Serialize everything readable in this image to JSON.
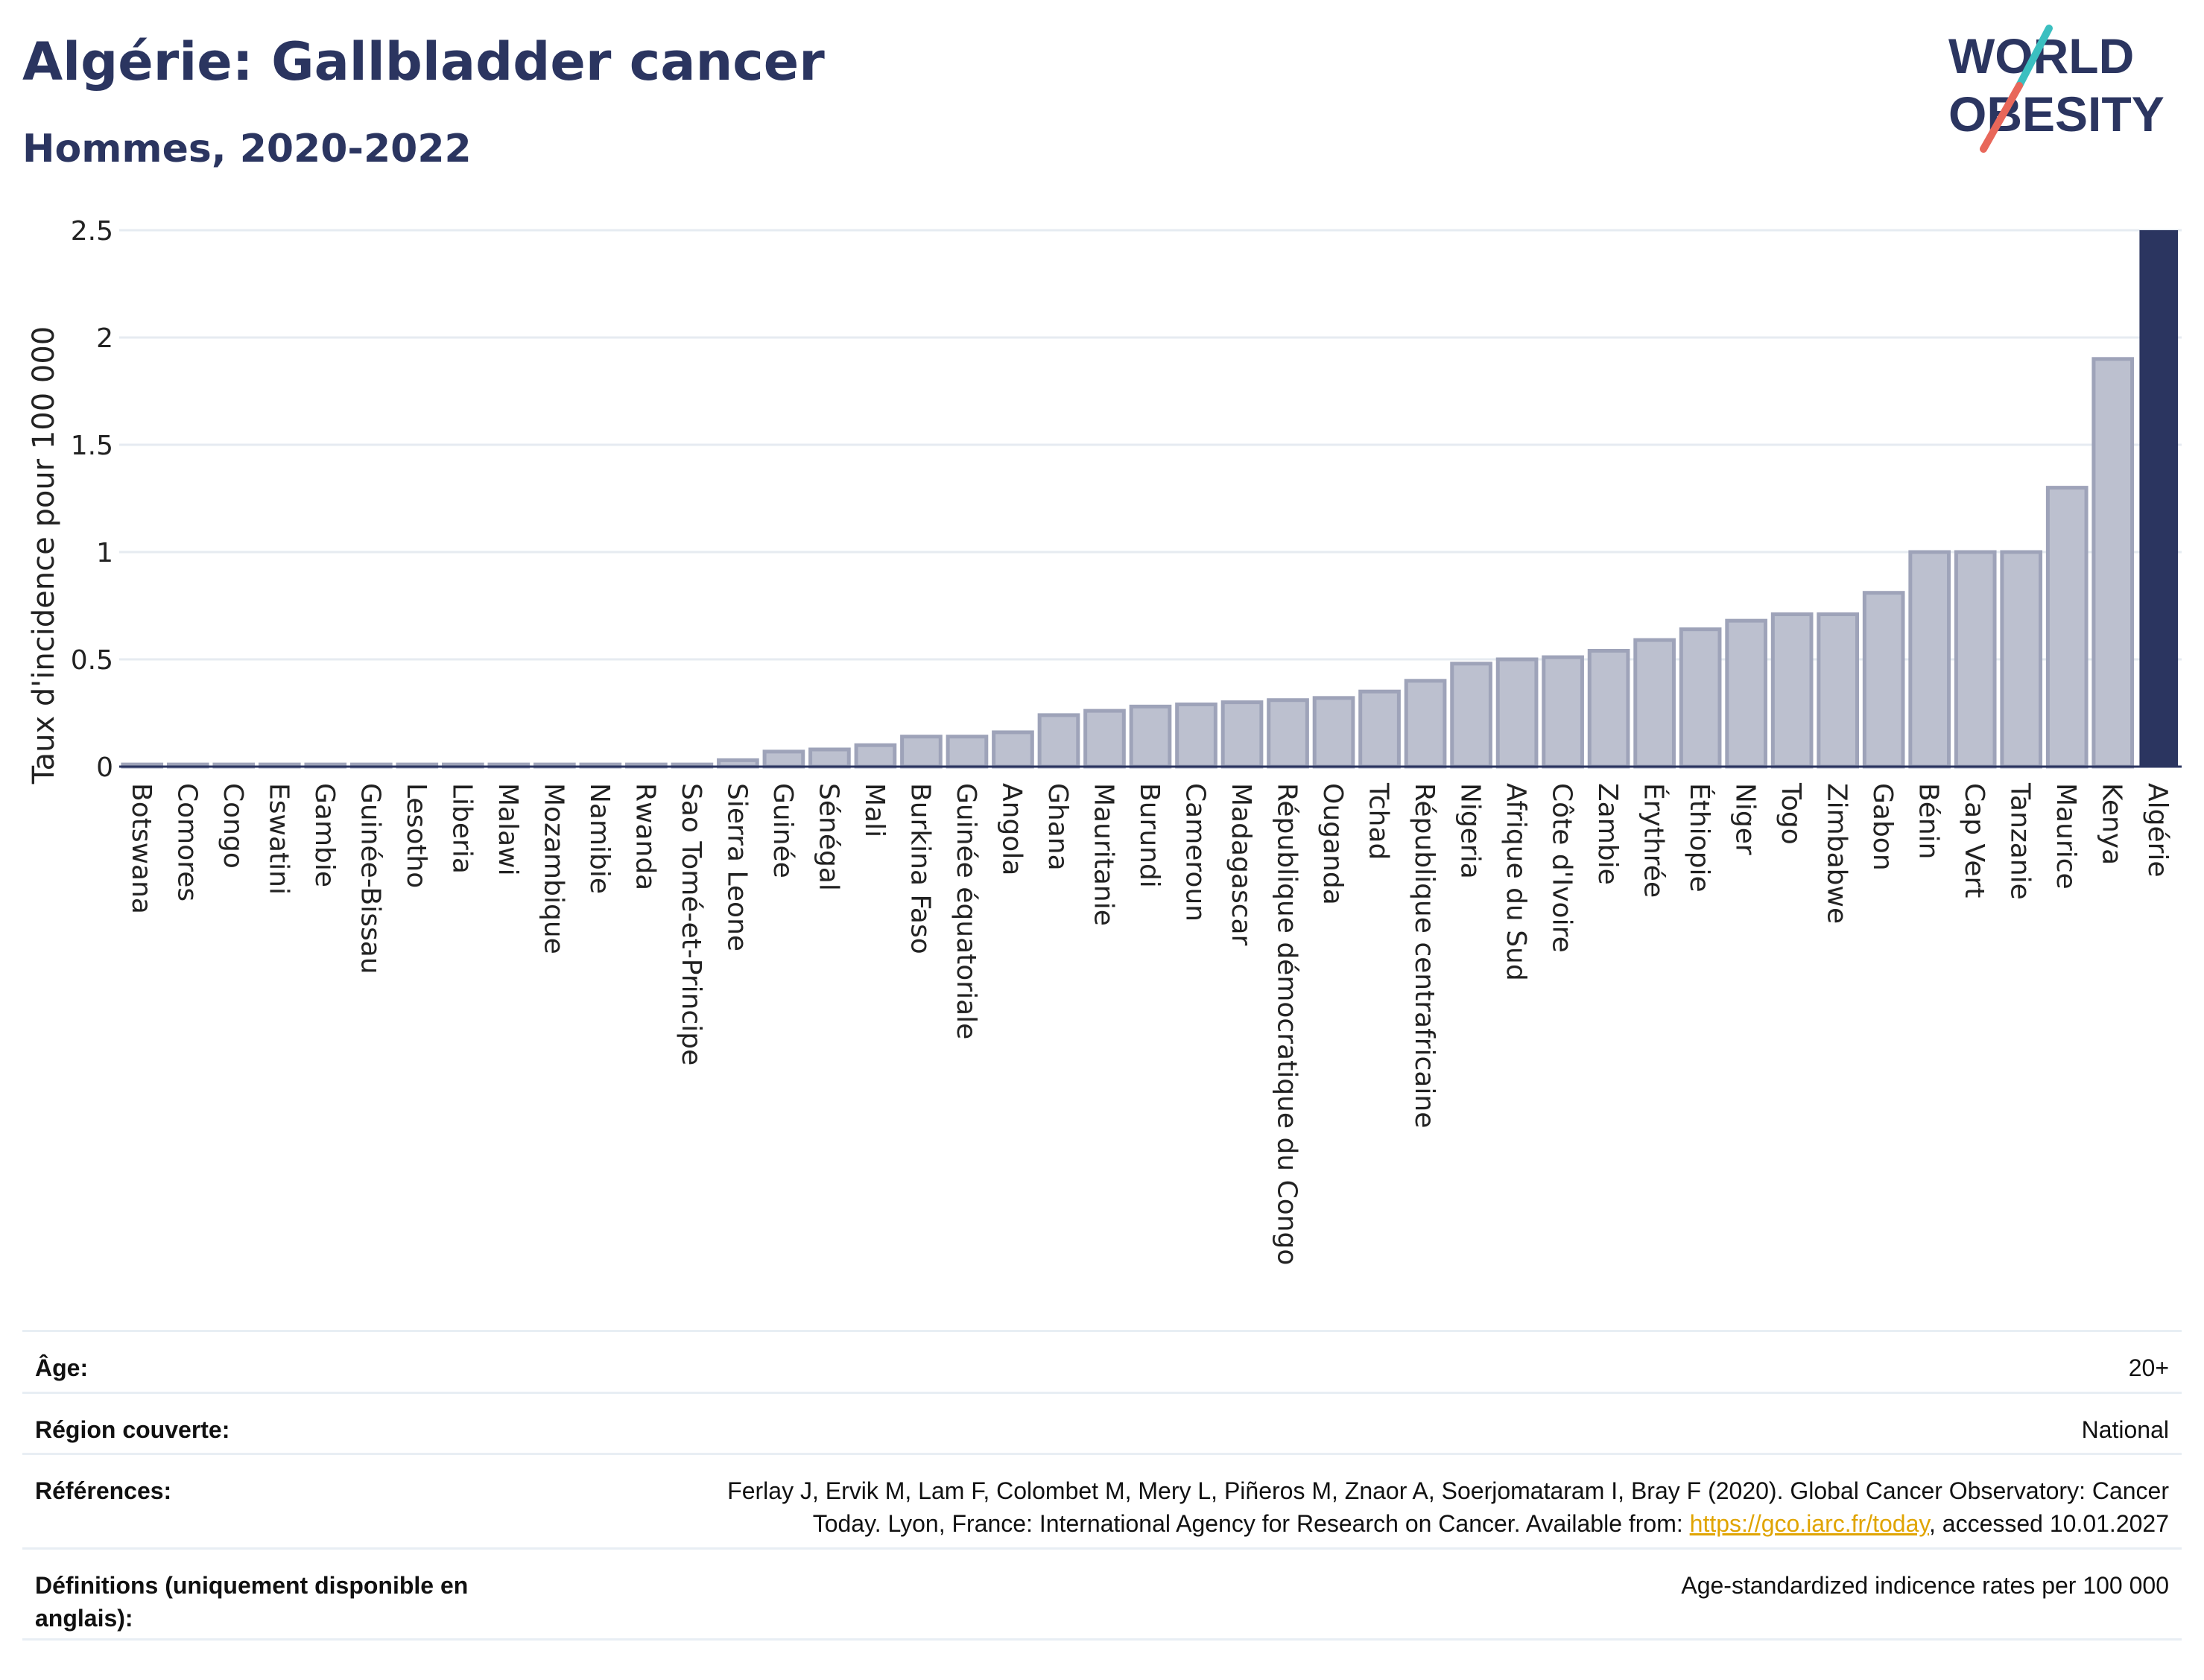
{
  "header": {
    "title": "Algérie: Gallbladder cancer",
    "subtitle": "Hommes, 2020-2022"
  },
  "logo": {
    "line1": "WORLD",
    "line2": "OBESITY",
    "colors": {
      "text": "#2b3560",
      "slash_top": "#3bbfc0",
      "slash_bottom": "#e8675a"
    }
  },
  "colors": {
    "bar": "#bcc0cf",
    "bar_border": "#9ea3b9",
    "highlight": "#2b3560",
    "grid": "#e6ebf1",
    "axis": "#2b3560"
  },
  "chart_data": {
    "type": "bar",
    "ylabel": "Taux d'incidence pour 100 000",
    "ylim": [
      0,
      2.5
    ],
    "yticks": [
      0,
      0.5,
      1,
      1.5,
      2,
      2.5
    ],
    "ytick_labels": [
      "0",
      "0.5",
      "1",
      "1.5",
      "2",
      "2.5"
    ],
    "grid": true,
    "highlight": "Algérie",
    "categories": [
      "Botswana",
      "Comores",
      "Congo",
      "Eswatini",
      "Gambie",
      "Guinée-Bissau",
      "Lesotho",
      "Liberia",
      "Malawi",
      "Mozambique",
      "Namibie",
      "Rwanda",
      "Sao Tomé-et-Principe",
      "Sierra Leone",
      "Guinée",
      "Sénégal",
      "Mali",
      "Burkina Faso",
      "Guinée équatoriale",
      "Angola",
      "Ghana",
      "Mauritanie",
      "Burundi",
      "Cameroun",
      "Madagascar",
      "République démocratique du Congo",
      "Ouganda",
      "Tchad",
      "République centrafricaine",
      "Nigeria",
      "Afrique du Sud",
      "Côte d'Ivoire",
      "Zambie",
      "Érythrée",
      "Éthiopie",
      "Niger",
      "Togo",
      "Zimbabwe",
      "Gabon",
      "Bénin",
      "Cap Vert",
      "Tanzanie",
      "Maurice",
      "Kenya",
      "Algérie"
    ],
    "values": [
      0.01,
      0.01,
      0.01,
      0.01,
      0.01,
      0.01,
      0.01,
      0.01,
      0.01,
      0.01,
      0.01,
      0.01,
      0.01,
      0.03,
      0.07,
      0.08,
      0.1,
      0.14,
      0.14,
      0.16,
      0.24,
      0.26,
      0.28,
      0.29,
      0.3,
      0.31,
      0.32,
      0.35,
      0.4,
      0.48,
      0.5,
      0.51,
      0.54,
      0.59,
      0.64,
      0.68,
      0.71,
      0.71,
      0.81,
      1.0,
      1.0,
      1.0,
      1.3,
      1.9,
      2.5
    ]
  },
  "info": {
    "age_label": "Âge:",
    "age_value": "20+",
    "region_label": "Région couverte:",
    "region_value": "National",
    "refs_label": "Références:",
    "refs_line1": "Ferlay J, Ervik M, Lam F, Colombet M, Mery L, Piñeros M, Znaor A, Soerjomataram I, Bray F (2020). Global Cancer Observatory: Cancer",
    "refs_line2_pre": "Today. Lyon, France: International Agency for Research on Cancer. Available from: ",
    "refs_link": "https://gco.iarc.fr/today",
    "refs_line2_post": ", accessed 10.01.2027",
    "defs_label": "Définitions (uniquement disponible en anglais):",
    "defs_value": "Age-standardized indicence rates per 100 000"
  }
}
